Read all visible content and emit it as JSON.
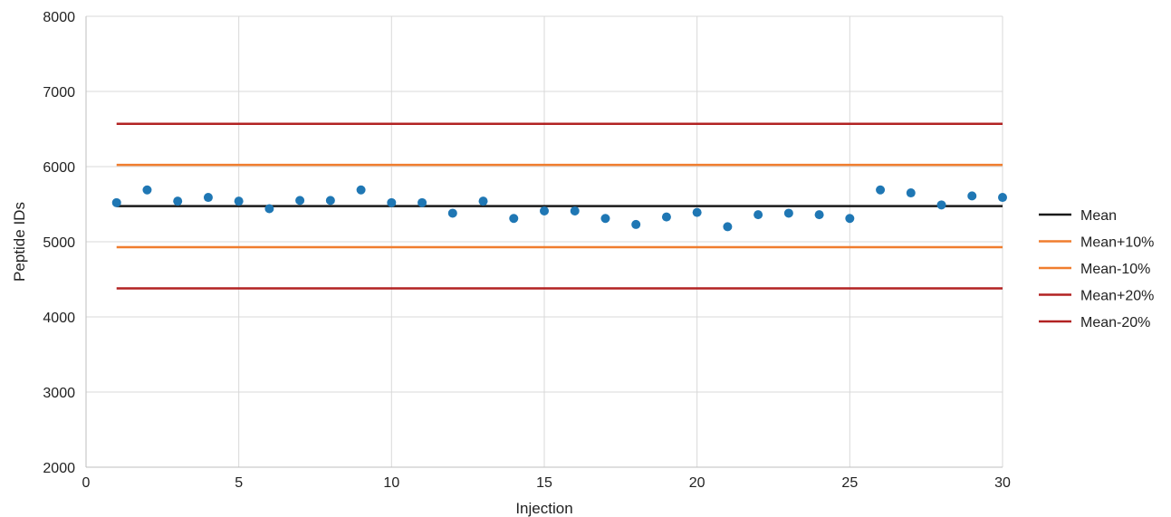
{
  "chart_data": {
    "type": "scatter",
    "title": "",
    "xlabel": "Injection",
    "ylabel": "Peptide IDs",
    "xlim": [
      0,
      30
    ],
    "ylim": [
      2000,
      8000
    ],
    "x_ticks": [
      0,
      5,
      10,
      15,
      20,
      25,
      30
    ],
    "y_ticks": [
      2000,
      3000,
      4000,
      5000,
      6000,
      7000,
      8000
    ],
    "grid": true,
    "legend_position": "right",
    "points": {
      "color": "#1f77b4",
      "x": [
        1,
        2,
        3,
        4,
        5,
        6,
        7,
        8,
        9,
        10,
        11,
        12,
        13,
        14,
        15,
        16,
        17,
        18,
        19,
        20,
        21,
        22,
        23,
        24,
        25,
        26,
        27,
        28,
        29,
        30
      ],
      "y": [
        5520,
        5690,
        5540,
        5590,
        5540,
        5440,
        5550,
        5550,
        5690,
        5520,
        5520,
        5380,
        5540,
        5310,
        5410,
        5410,
        5310,
        5230,
        5330,
        5390,
        5200,
        5360,
        5380,
        5360,
        5310,
        5690,
        5650,
        5490,
        5610,
        5590
      ]
    },
    "series": [
      {
        "name": "Mean",
        "color": "#1a1a1a",
        "x": [
          1,
          30
        ],
        "y": [
          5475,
          5475
        ]
      },
      {
        "name": "Mean+10%",
        "color": "#f07d2e",
        "x": [
          1,
          30
        ],
        "y": [
          6022,
          6022
        ]
      },
      {
        "name": "Mean-10%",
        "color": "#f07d2e",
        "x": [
          1,
          30
        ],
        "y": [
          4928,
          4928
        ]
      },
      {
        "name": "Mean+20%",
        "color": "#b22222",
        "x": [
          1,
          30
        ],
        "y": [
          6570,
          6570
        ]
      },
      {
        "name": "Mean-20%",
        "color": "#b22222",
        "x": [
          1,
          30
        ],
        "y": [
          4380,
          4380
        ]
      }
    ]
  }
}
